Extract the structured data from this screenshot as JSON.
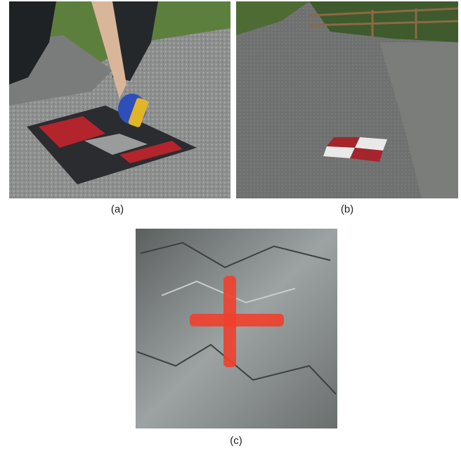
{
  "panels": [
    {
      "caption": "(a)"
    },
    {
      "caption": "(b)"
    },
    {
      "caption": "(c)"
    }
  ]
}
